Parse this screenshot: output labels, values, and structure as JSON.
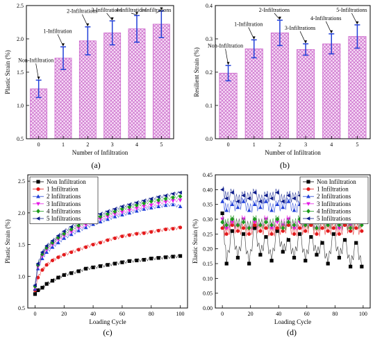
{
  "chart_data": [
    {
      "id": "a",
      "panel_label": "(a)",
      "type": "bar",
      "categories": [
        "0",
        "1",
        "2",
        "3",
        "4",
        "5"
      ],
      "values": [
        1.25,
        1.71,
        1.97,
        2.09,
        2.15,
        2.22
      ],
      "errors": [
        0.13,
        0.17,
        0.21,
        0.18,
        0.2,
        0.2
      ],
      "annotations": [
        "Non-Infiltration",
        "1-Infiltration",
        "2-Infiltrations",
        "3-Infiltrations",
        "4-Infiltrations",
        "5-Infiltrations"
      ],
      "xlabel": "Number of Infiltration",
      "ylabel": "Plastic Strain (%)",
      "ylim": [
        0.5,
        2.5
      ],
      "yticks": [
        "0.5",
        "1.0",
        "1.5",
        "2.0",
        "2.5"
      ],
      "bar_color": "#cc66cc",
      "error_color": "#1f3fd8"
    },
    {
      "id": "b",
      "panel_label": "(b)",
      "type": "bar",
      "categories": [
        "0",
        "1",
        "2",
        "3",
        "4",
        "5"
      ],
      "values": [
        0.197,
        0.27,
        0.318,
        0.268,
        0.285,
        0.307
      ],
      "errors": [
        0.023,
        0.027,
        0.038,
        0.017,
        0.03,
        0.035
      ],
      "annotations": [
        "Non-Infiltration",
        "1-Infiltration",
        "2-Infiltrations",
        "3-Infiltrations",
        "4-Infiltrations",
        "5-Infiltrations"
      ],
      "xlabel": "Number of Infiltration",
      "ylabel": "Resilient Strain (%)",
      "ylim": [
        0.0,
        0.4
      ],
      "yticks": [
        "0.0",
        "0.1",
        "0.2",
        "0.3",
        "0.4"
      ],
      "bar_color": "#cc66cc",
      "error_color": "#1f3fd8"
    },
    {
      "id": "c",
      "panel_label": "(c)",
      "type": "scatter",
      "xlabel": "Loading Cycle",
      "ylabel": "Plastic Strain (%)",
      "xlim": [
        -5,
        105
      ],
      "ylim": [
        0.5,
        2.6
      ],
      "xticks": [
        "0",
        "20",
        "40",
        "60",
        "80",
        "100"
      ],
      "yticks": [
        "0.5",
        "1.0",
        "1.5",
        "2.0",
        "2.5"
      ],
      "legend_position": "top-left",
      "series": [
        {
          "name": "Non Infiltration",
          "color": "#000000",
          "marker": "square",
          "x": [
            0,
            2,
            5,
            8,
            12,
            16,
            20,
            25,
            30,
            35,
            40,
            45,
            50,
            55,
            60,
            65,
            70,
            75,
            80,
            85,
            90,
            95,
            100
          ],
          "y": [
            0.72,
            0.78,
            0.82,
            0.88,
            0.93,
            0.98,
            1.02,
            1.05,
            1.08,
            1.12,
            1.14,
            1.16,
            1.18,
            1.2,
            1.22,
            1.24,
            1.25,
            1.26,
            1.28,
            1.29,
            1.3,
            1.31,
            1.32
          ]
        },
        {
          "name": "1 Infiltration",
          "color": "#e41a1c",
          "marker": "circle",
          "x": [
            0,
            2,
            5,
            8,
            12,
            16,
            20,
            25,
            30,
            35,
            40,
            45,
            50,
            55,
            60,
            65,
            70,
            75,
            80,
            85,
            90,
            95,
            100
          ],
          "y": [
            0.78,
            0.98,
            1.1,
            1.18,
            1.25,
            1.3,
            1.34,
            1.38,
            1.42,
            1.46,
            1.5,
            1.53,
            1.57,
            1.6,
            1.63,
            1.65,
            1.67,
            1.68,
            1.7,
            1.72,
            1.74,
            1.75,
            1.77
          ]
        },
        {
          "name": "2 Infiltrations",
          "color": "#1f3fd8",
          "marker": "triangle-up",
          "x": [
            0,
            2,
            5,
            8,
            12,
            16,
            20,
            25,
            30,
            35,
            40,
            45,
            50,
            55,
            60,
            65,
            70,
            75,
            80,
            85,
            90,
            95,
            100
          ],
          "y": [
            0.8,
            1.12,
            1.28,
            1.38,
            1.46,
            1.53,
            1.6,
            1.66,
            1.72,
            1.77,
            1.82,
            1.86,
            1.9,
            1.94,
            1.97,
            2.0,
            2.03,
            2.06,
            2.08,
            2.1,
            2.12,
            2.13,
            2.1
          ]
        },
        {
          "name": "3 Infiltrations",
          "color": "#e619e6",
          "marker": "triangle-down",
          "x": [
            0,
            2,
            5,
            8,
            12,
            16,
            20,
            25,
            30,
            35,
            40,
            45,
            50,
            55,
            60,
            65,
            70,
            75,
            80,
            85,
            90,
            95,
            100
          ],
          "y": [
            0.82,
            1.15,
            1.32,
            1.42,
            1.5,
            1.58,
            1.64,
            1.7,
            1.76,
            1.81,
            1.86,
            1.9,
            1.94,
            1.98,
            2.01,
            2.04,
            2.07,
            2.1,
            2.12,
            2.15,
            2.17,
            2.19,
            2.2
          ]
        },
        {
          "name": "4 Infiltrations",
          "color": "#1a9a1a",
          "marker": "diamond",
          "x": [
            0,
            2,
            5,
            8,
            12,
            16,
            20,
            25,
            30,
            35,
            40,
            45,
            50,
            55,
            60,
            65,
            70,
            75,
            80,
            85,
            90,
            95,
            100
          ],
          "y": [
            0.84,
            1.18,
            1.35,
            1.45,
            1.53,
            1.61,
            1.67,
            1.74,
            1.8,
            1.85,
            1.9,
            1.94,
            1.98,
            2.02,
            2.06,
            2.09,
            2.12,
            2.15,
            2.18,
            2.2,
            2.22,
            2.24,
            2.26
          ]
        },
        {
          "name": "5 Infiltrations",
          "color": "#0a1a8a",
          "marker": "triangle-left",
          "x": [
            0,
            2,
            5,
            8,
            12,
            16,
            20,
            25,
            30,
            35,
            40,
            45,
            50,
            55,
            60,
            65,
            70,
            75,
            80,
            85,
            90,
            95,
            100
          ],
          "y": [
            0.86,
            1.2,
            1.38,
            1.48,
            1.56,
            1.64,
            1.71,
            1.78,
            1.84,
            1.89,
            1.94,
            1.98,
            2.02,
            2.06,
            2.1,
            2.13,
            2.16,
            2.19,
            2.22,
            2.25,
            2.27,
            2.3,
            2.32
          ]
        }
      ]
    },
    {
      "id": "d",
      "panel_label": "(d)",
      "type": "scatter",
      "xlabel": "Loading Cycle",
      "ylabel": "Elastic Strain (%)",
      "xlim": [
        -5,
        105
      ],
      "ylim": [
        0.0,
        0.45
      ],
      "xticks": [
        "0",
        "20",
        "40",
        "60",
        "80",
        "100"
      ],
      "yticks": [
        "0.00",
        "0.05",
        "0.10",
        "0.15",
        "0.20",
        "0.25",
        "0.30",
        "0.35",
        "0.40",
        "0.45"
      ],
      "legend_position": "top-right",
      "series": [
        {
          "name": "Non Infiltration",
          "color": "#000000",
          "marker": "square",
          "x": [
            0,
            3,
            7,
            11,
            15,
            19,
            23,
            27,
            31,
            35,
            39,
            43,
            47,
            51,
            55,
            59,
            63,
            67,
            71,
            75,
            79,
            83,
            87,
            91,
            95,
            99
          ],
          "y": [
            0.32,
            0.15,
            0.26,
            0.17,
            0.25,
            0.15,
            0.27,
            0.18,
            0.24,
            0.16,
            0.26,
            0.19,
            0.23,
            0.17,
            0.25,
            0.16,
            0.24,
            0.18,
            0.22,
            0.15,
            0.25,
            0.17,
            0.23,
            0.14,
            0.22,
            0.14
          ]
        },
        {
          "name": "1 Infiltration",
          "color": "#e41a1c",
          "marker": "circle",
          "x": [
            0,
            3,
            7,
            11,
            15,
            19,
            23,
            27,
            31,
            35,
            39,
            43,
            47,
            51,
            55,
            59,
            63,
            67,
            71,
            75,
            79,
            83,
            87,
            91,
            95,
            99
          ],
          "y": [
            0.27,
            0.25,
            0.28,
            0.26,
            0.27,
            0.25,
            0.28,
            0.26,
            0.27,
            0.25,
            0.27,
            0.26,
            0.28,
            0.25,
            0.27,
            0.26,
            0.28,
            0.25,
            0.27,
            0.26,
            0.27,
            0.25,
            0.28,
            0.26,
            0.27,
            0.26
          ]
        },
        {
          "name": "2 Infiltrations",
          "color": "#1f3fd8",
          "marker": "triangle-up",
          "x": [
            0,
            3,
            7,
            11,
            15,
            19,
            23,
            27,
            31,
            35,
            39,
            43,
            47,
            51,
            55,
            59,
            63,
            67,
            71,
            75,
            79,
            83,
            87,
            91,
            95,
            99
          ],
          "y": [
            0.36,
            0.33,
            0.35,
            0.34,
            0.36,
            0.33,
            0.35,
            0.34,
            0.36,
            0.33,
            0.35,
            0.34,
            0.36,
            0.33,
            0.35,
            0.34,
            0.35,
            0.33,
            0.36,
            0.34,
            0.35,
            0.33,
            0.35,
            0.34,
            0.35,
            0.33
          ]
        },
        {
          "name": "3 Infiltrations",
          "color": "#e619e6",
          "marker": "triangle-down",
          "x": [
            0,
            3,
            7,
            11,
            15,
            19,
            23,
            27,
            31,
            35,
            39,
            43,
            47,
            51,
            55,
            59,
            63,
            67,
            71,
            75,
            79,
            83,
            87,
            91,
            95,
            99
          ],
          "y": [
            0.3,
            0.27,
            0.29,
            0.28,
            0.3,
            0.27,
            0.29,
            0.28,
            0.3,
            0.27,
            0.29,
            0.28,
            0.3,
            0.27,
            0.29,
            0.28,
            0.3,
            0.27,
            0.29,
            0.28,
            0.29,
            0.27,
            0.29,
            0.28,
            0.29,
            0.28
          ]
        },
        {
          "name": "4 Infiltrations",
          "color": "#1a9a1a",
          "marker": "diamond",
          "x": [
            0,
            3,
            7,
            11,
            15,
            19,
            23,
            27,
            31,
            35,
            39,
            43,
            47,
            51,
            55,
            59,
            63,
            67,
            71,
            75,
            79,
            83,
            87,
            91,
            95,
            99
          ],
          "y": [
            0.29,
            0.28,
            0.3,
            0.28,
            0.29,
            0.27,
            0.3,
            0.28,
            0.29,
            0.28,
            0.3,
            0.27,
            0.29,
            0.28,
            0.3,
            0.28,
            0.29,
            0.27,
            0.29,
            0.28,
            0.29,
            0.28,
            0.29,
            0.27,
            0.29,
            0.28
          ]
        },
        {
          "name": "5 Infiltrations",
          "color": "#0a1a8a",
          "marker": "triangle-left",
          "x": [
            0,
            3,
            7,
            11,
            15,
            19,
            23,
            27,
            31,
            35,
            39,
            43,
            47,
            51,
            55,
            59,
            63,
            67,
            71,
            75,
            79,
            83,
            87,
            91,
            95,
            99
          ],
          "y": [
            0.4,
            0.37,
            0.39,
            0.36,
            0.38,
            0.37,
            0.39,
            0.36,
            0.38,
            0.37,
            0.39,
            0.36,
            0.38,
            0.37,
            0.38,
            0.36,
            0.38,
            0.37,
            0.38,
            0.36,
            0.37,
            0.36,
            0.37,
            0.35,
            0.36,
            0.34
          ]
        }
      ]
    }
  ]
}
